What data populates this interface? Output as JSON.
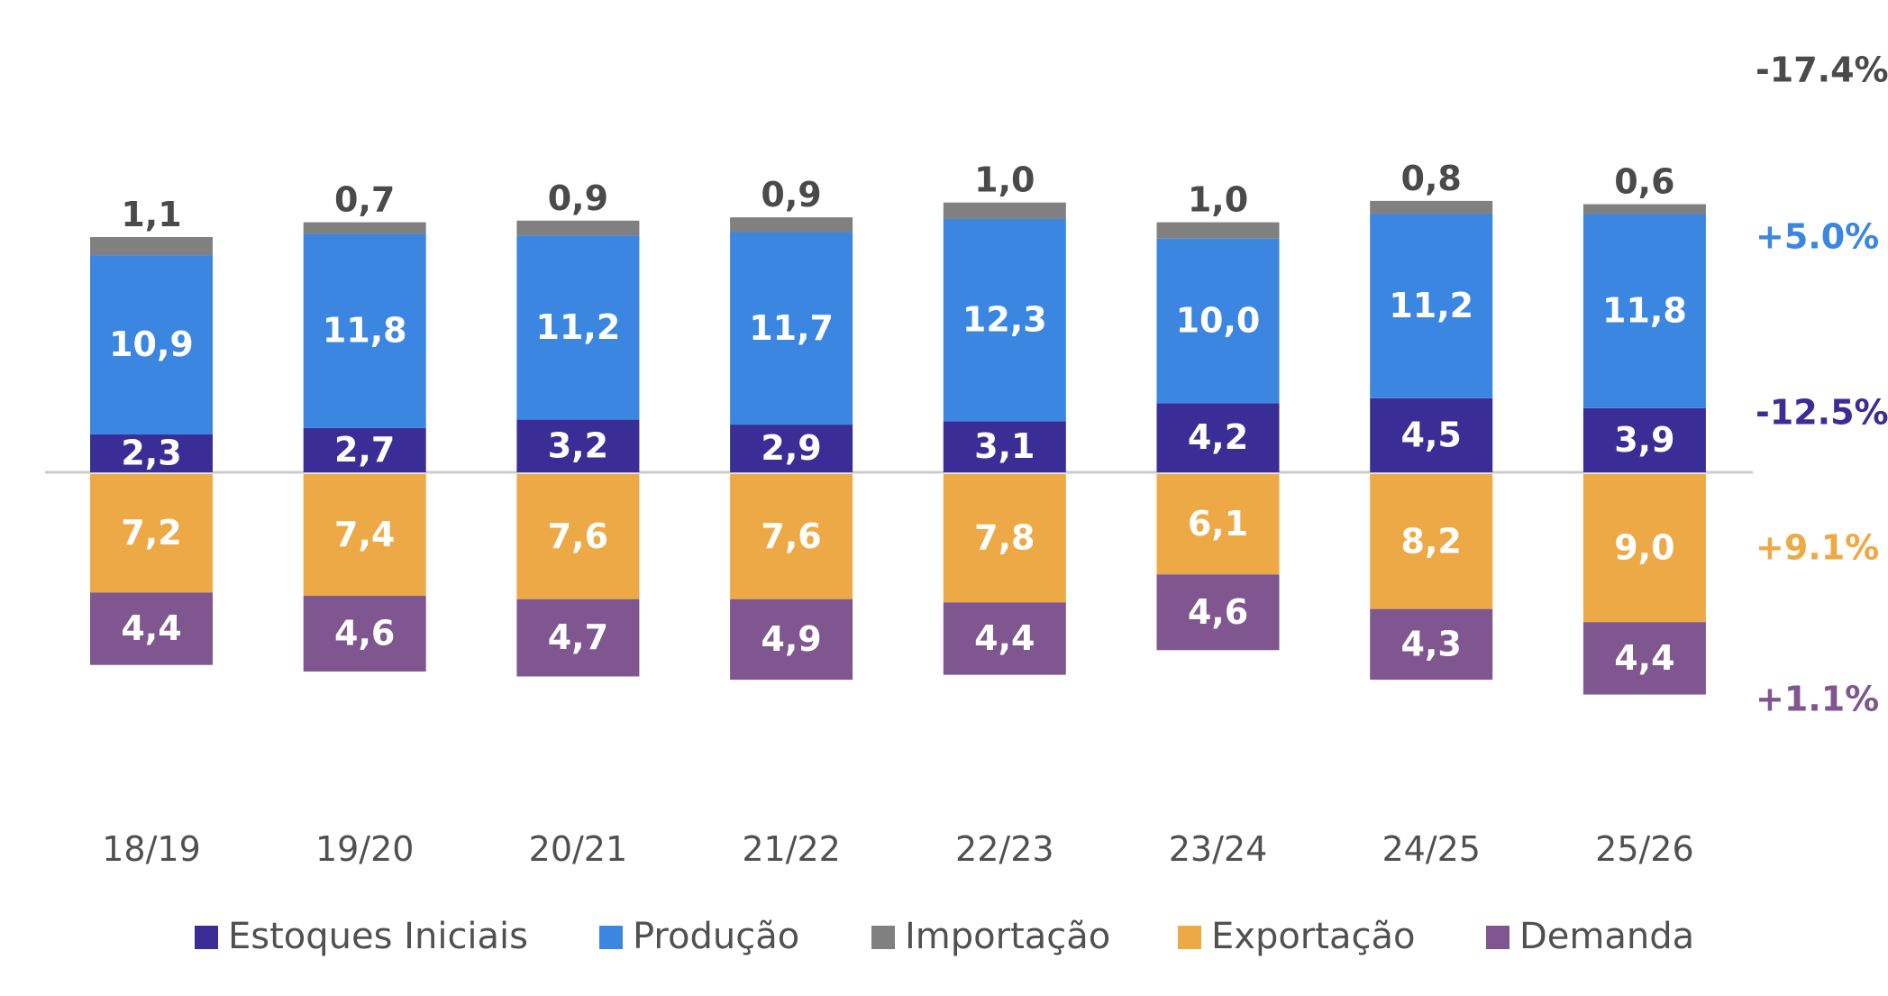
{
  "chart_data": {
    "type": "bar",
    "stacked": true,
    "diverging": true,
    "categories": [
      "18/19",
      "19/20",
      "20/21",
      "21/22",
      "22/23",
      "23/24",
      "24/25",
      "25/26"
    ],
    "series": [
      {
        "name": "Estoques Iniciais",
        "direction": "up",
        "color": "#3a2e96",
        "values": [
          2.3,
          2.7,
          3.2,
          2.9,
          3.1,
          4.2,
          4.5,
          3.9
        ],
        "labels": [
          "2,3",
          "2,7",
          "3,2",
          "2,9",
          "3,1",
          "4,2",
          "4,5",
          "3,9"
        ],
        "change": "-12.5%"
      },
      {
        "name": "Produção",
        "direction": "up",
        "color": "#3b86e0",
        "values": [
          10.9,
          11.8,
          11.2,
          11.7,
          12.3,
          10.0,
          11.2,
          11.8
        ],
        "labels": [
          "10,9",
          "11,8",
          "11,2",
          "11,7",
          "12,3",
          "10,0",
          "11,2",
          "11,8"
        ],
        "change": "+5.0%"
      },
      {
        "name": "Importação",
        "direction": "up",
        "color": "#808080",
        "values": [
          1.1,
          0.7,
          0.9,
          0.9,
          1.0,
          1.0,
          0.8,
          0.6
        ],
        "labels": [
          "1,1",
          "0,7",
          "0,9",
          "0,9",
          "1,0",
          "1,0",
          "0,8",
          "0,6"
        ],
        "change": "-17.4%"
      },
      {
        "name": "Exportação",
        "direction": "down",
        "color": "#eda945",
        "values": [
          7.2,
          7.4,
          7.6,
          7.6,
          7.8,
          6.1,
          8.2,
          9.0
        ],
        "labels": [
          "7,2",
          "7,4",
          "7,6",
          "7,6",
          "7,8",
          "6,1",
          "8,2",
          "9,0"
        ],
        "change": "+9.1%"
      },
      {
        "name": "Demanda",
        "direction": "down",
        "color": "#7f5690",
        "values": [
          4.4,
          4.6,
          4.7,
          4.9,
          4.4,
          4.6,
          4.3,
          4.4
        ],
        "labels": [
          "4,4",
          "4,6",
          "4,7",
          "4,9",
          "4,4",
          "4,6",
          "4,3",
          "4,4"
        ],
        "change": "+1.1%"
      }
    ],
    "legend": "bottom",
    "grid": false,
    "title": "",
    "xlabel": "",
    "ylabel": ""
  }
}
